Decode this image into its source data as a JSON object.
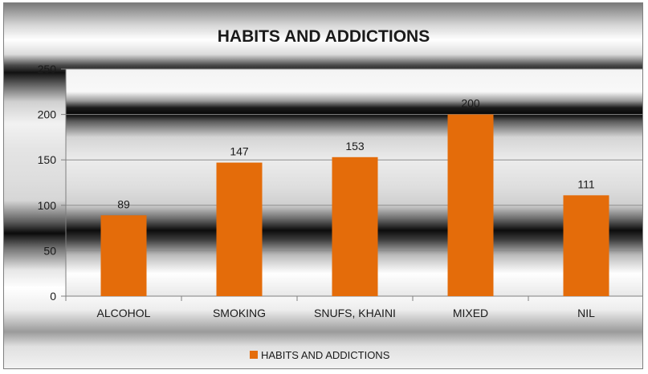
{
  "chart_data": {
    "type": "bar",
    "title": "HABITS AND ADDICTIONS",
    "categories": [
      "ALCOHOL",
      "SMOKING",
      "SNUFS, KHAINI",
      "MIXED",
      "NIL"
    ],
    "series": [
      {
        "name": "HABITS AND ADDICTIONS",
        "values": [
          89,
          147,
          153,
          200,
          111
        ],
        "color": "#E46C0A"
      }
    ],
    "ylim": [
      0,
      250
    ],
    "yticks": [
      0,
      50,
      100,
      150,
      200,
      250
    ],
    "grid": true,
    "legend_position": "bottom",
    "xlabel": "",
    "ylabel": ""
  }
}
